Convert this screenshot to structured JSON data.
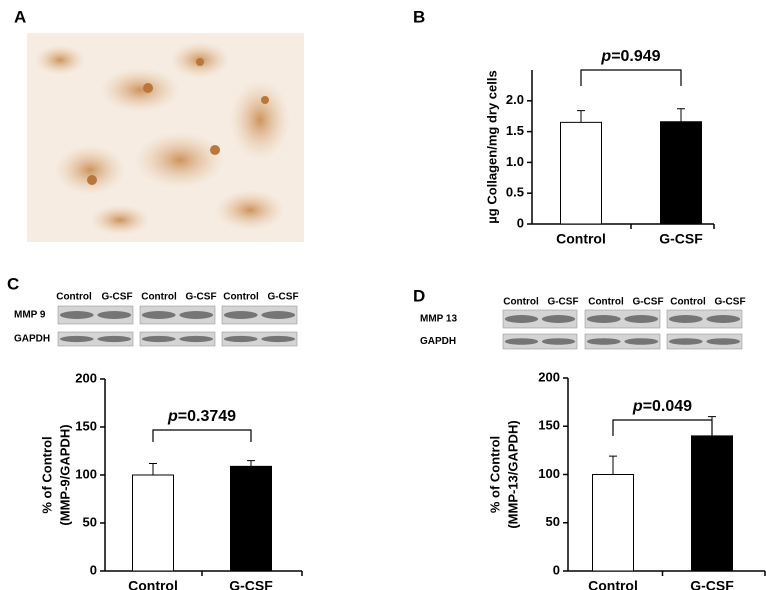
{
  "panel_labels": [
    "A",
    "B",
    "C",
    "D"
  ],
  "blots": [
    {
      "lanes": [
        "Control",
        "G-CSF",
        "Control",
        "G-CSF",
        "Control",
        "G-CSF"
      ],
      "rows": [
        "MMP 9",
        "GAPDH"
      ]
    },
    {
      "lanes": [
        "Control",
        "G-CSF",
        "Control",
        "G-CSF",
        "Control",
        "G-CSF"
      ],
      "rows": [
        "MMP 13",
        "GAPDH"
      ]
    }
  ],
  "chart_data": [
    {
      "type": "bar",
      "ylabel": [
        "µg Collagen/mg dry cells"
      ],
      "annotation": "p=0.949",
      "categories": [
        "Control",
        "G-CSF"
      ],
      "values": [
        1.65,
        1.66
      ],
      "errors": [
        0.19,
        0.21
      ],
      "colors": [
        "#ffffff",
        "#000000"
      ],
      "ylim": [
        0,
        2.5
      ],
      "yticks": [
        0,
        0.5,
        {
          "value": 1,
          "label": "1.0"
        },
        1.5,
        {
          "value": 2,
          "label": "2.0"
        }
      ]
    },
    {
      "type": "bar",
      "ylabel": [
        "% of Control",
        "(MMP-9/GAPDH)"
      ],
      "annotation": "p=0.3749",
      "categories": [
        "Control",
        "G-CSF"
      ],
      "values": [
        100,
        109
      ],
      "errors": [
        12,
        6
      ],
      "colors": [
        "#ffffff",
        "#000000"
      ],
      "ylim": [
        0,
        200
      ],
      "yticks": [
        0,
        50,
        100,
        150,
        200
      ]
    },
    {
      "type": "bar",
      "ylabel": [
        "% of Control",
        "(MMP-13/GAPDH)"
      ],
      "annotation": "p=0.049",
      "categories": [
        "Control",
        "G-CSF"
      ],
      "values": [
        100,
        140
      ],
      "errors": [
        19,
        20
      ],
      "colors": [
        "#ffffff",
        "#000000"
      ],
      "ylim": [
        0,
        200
      ],
      "yticks": [
        0,
        50,
        100,
        150,
        200
      ]
    }
  ]
}
